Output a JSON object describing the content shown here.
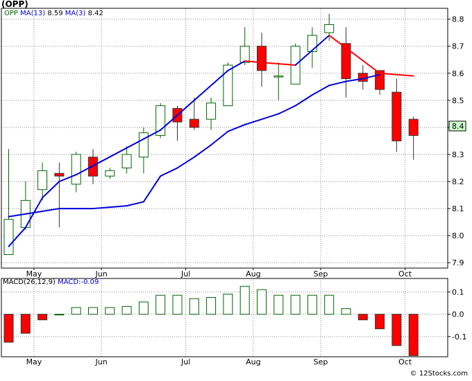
{
  "ticker_title": "(OPP)",
  "legend": {
    "symbol": "OPP",
    "ma13_label": "MA(13)",
    "ma13_value": "8.59",
    "ma3_label": "MA(3)",
    "ma3_value": "8.42"
  },
  "macd_legend": {
    "label": "MACD(26,12,9)",
    "macd_label": "MACD:",
    "macd_value": "-0.09"
  },
  "last_price_tag": "8.4",
  "watermark": "© 12Stocks.com",
  "colors": {
    "up": "#006400",
    "down": "#ff0000",
    "ma13": "#0000dd",
    "ma3": "#ff0000",
    "ma3_rising": "#0000dd",
    "grid": "#888888",
    "tag_bg": "#ccffcc"
  },
  "chart_data": [
    {
      "type": "candlestick",
      "x_labels": [
        "May",
        "Jun",
        "Jul",
        "Aug",
        "Sep",
        "Oct"
      ],
      "x_label_positions": [
        1.5,
        5.5,
        10.5,
        14.5,
        18.5,
        23.5
      ],
      "y_ticks": [
        7.9,
        8.0,
        8.1,
        8.2,
        8.3,
        8.4,
        8.5,
        8.6,
        8.7,
        8.8
      ],
      "ylim": [
        7.88,
        8.84
      ],
      "grid": true,
      "candles": [
        {
          "o": 7.93,
          "h": 8.32,
          "l": 7.93,
          "c": 8.06
        },
        {
          "o": 8.03,
          "h": 8.2,
          "l": 8.02,
          "c": 8.13
        },
        {
          "o": 8.17,
          "h": 8.27,
          "l": 8.13,
          "c": 8.24
        },
        {
          "o": 8.23,
          "h": 8.27,
          "l": 8.03,
          "c": 8.22
        },
        {
          "o": 8.19,
          "h": 8.31,
          "l": 8.16,
          "c": 8.3
        },
        {
          "o": 8.29,
          "h": 8.32,
          "l": 8.19,
          "c": 8.22
        },
        {
          "o": 8.22,
          "h": 8.25,
          "l": 8.21,
          "c": 8.24
        },
        {
          "o": 8.25,
          "h": 8.33,
          "l": 8.23,
          "c": 8.3
        },
        {
          "o": 8.29,
          "h": 8.4,
          "l": 8.23,
          "c": 8.38
        },
        {
          "o": 8.37,
          "h": 8.49,
          "l": 8.36,
          "c": 8.48
        },
        {
          "o": 8.47,
          "h": 8.48,
          "l": 8.35,
          "c": 8.42
        },
        {
          "o": 8.43,
          "h": 8.51,
          "l": 8.39,
          "c": 8.4
        },
        {
          "o": 8.43,
          "h": 8.51,
          "l": 8.39,
          "c": 8.49
        },
        {
          "o": 8.48,
          "h": 8.64,
          "l": 8.48,
          "c": 8.63
        },
        {
          "o": 8.64,
          "h": 8.77,
          "l": 8.63,
          "c": 8.7
        },
        {
          "o": 8.7,
          "h": 8.75,
          "l": 8.55,
          "c": 8.61
        },
        {
          "o": 8.59,
          "h": 8.64,
          "l": 8.5,
          "c": 8.59
        },
        {
          "o": 8.56,
          "h": 8.71,
          "l": 8.56,
          "c": 8.7
        },
        {
          "o": 8.68,
          "h": 8.77,
          "l": 8.62,
          "c": 8.74
        },
        {
          "o": 8.75,
          "h": 8.82,
          "l": 8.72,
          "c": 8.78
        },
        {
          "o": 8.71,
          "h": 8.77,
          "l": 8.51,
          "c": 8.58
        },
        {
          "o": 8.6,
          "h": 8.63,
          "l": 8.54,
          "c": 8.57
        },
        {
          "o": 8.61,
          "h": 8.61,
          "l": 8.52,
          "c": 8.54
        },
        {
          "o": 8.53,
          "h": 8.58,
          "l": 8.31,
          "c": 8.35
        },
        {
          "o": 8.43,
          "h": 8.44,
          "l": 8.28,
          "c": 8.37
        }
      ],
      "ma13": [
        7.96,
        8.03,
        8.14,
        8.2,
        8.225,
        null,
        null,
        null,
        null,
        8.39,
        null,
        null,
        null,
        8.61,
        8.645,
        null,
        null,
        8.63,
        null,
        8.74,
        null,
        null,
        8.6,
        null,
        8.59
      ],
      "ma3": [
        8.07,
        8.08,
        8.09,
        8.1,
        8.1,
        8.1,
        8.105,
        8.11,
        8.125,
        8.22,
        8.25,
        8.29,
        8.335,
        8.385,
        8.41,
        8.43,
        8.45,
        8.48,
        8.52,
        8.555,
        8.57,
        8.58,
        8.595,
        null,
        null
      ]
    },
    {
      "type": "bar",
      "title": "MACD(26,12,9)",
      "x_labels": [
        "May",
        "Jun",
        "Jul",
        "Aug",
        "Sep",
        "Oct"
      ],
      "y_ticks": [
        0.1,
        0.0,
        -0.1
      ],
      "y_tick_labels": [
        "0.1",
        "0.0",
        "-0.1"
      ],
      "ylim": [
        -0.19,
        0.16
      ],
      "grid": true,
      "values": [
        -0.125,
        -0.085,
        -0.025,
        0.0,
        0.03,
        0.03,
        0.03,
        0.035,
        0.055,
        0.085,
        0.085,
        0.07,
        0.075,
        0.09,
        0.125,
        0.11,
        0.085,
        0.085,
        0.085,
        0.085,
        0.025,
        -0.025,
        -0.065,
        -0.14,
        -0.185
      ]
    }
  ]
}
